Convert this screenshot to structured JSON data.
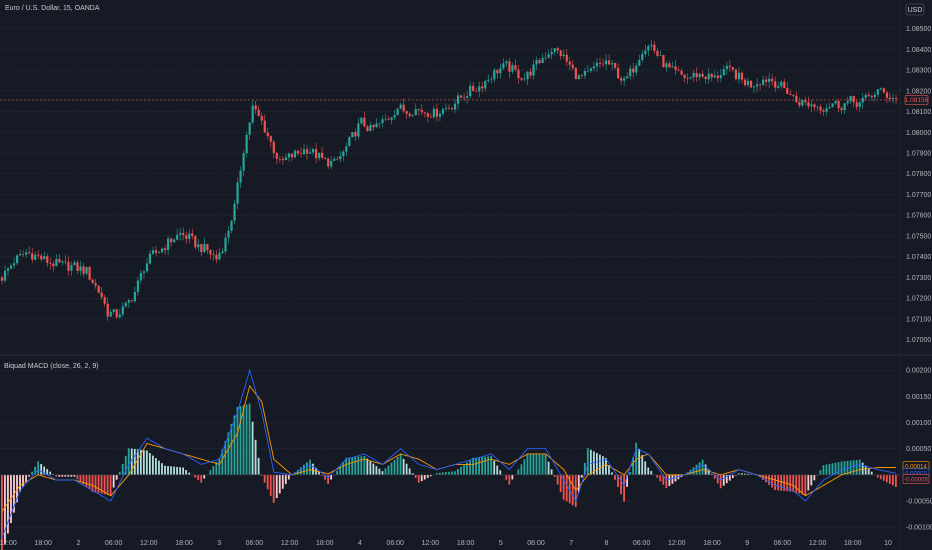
{
  "header": {
    "symbol_title": "Euro / U.S. Dollar, 15, OANDA",
    "currency": "USD"
  },
  "indicator": {
    "title": "Biquad MACD (close, 26, 2, 9)"
  },
  "colors": {
    "background": "#161a25",
    "grid": "#222631",
    "up_candle": "#26a69a",
    "down_candle": "#ef5350",
    "macd_line": "#2962ff",
    "signal_line": "#ff9800",
    "hist_up": "#b2dfdb",
    "hist_up_strong": "#26a69a",
    "hist_down": "#ffcdd2",
    "hist_down_strong": "#ef5350",
    "axis_text": "#b2b5be"
  },
  "chart_data": [
    {
      "type": "candlestick",
      "title": "Euro / U.S. Dollar, 15, OANDA",
      "y_ticks": [
        "1.08500",
        "1.08400",
        "1.08300",
        "1.08200",
        "1.08100",
        "1.08000",
        "1.07900",
        "1.07800",
        "1.07700",
        "1.07600",
        "1.07500",
        "1.07400",
        "1.07300",
        "1.07200",
        "1.07100",
        "1.07000"
      ],
      "y_tick_values": [
        1.085,
        1.084,
        1.083,
        1.082,
        1.081,
        1.08,
        1.079,
        1.078,
        1.077,
        1.076,
        1.075,
        1.074,
        1.073,
        1.072,
        1.071,
        1.07
      ],
      "ylim": [
        1.0695,
        1.0858
      ],
      "last_price_label": "1.08156",
      "last_price": 1.08156,
      "x_ticks": [
        "12:00",
        "18:00",
        "2",
        "06:00",
        "12:00",
        "18:00",
        "3",
        "06:00",
        "12:00",
        "18:00",
        "4",
        "06:00",
        "12:00",
        "18:00",
        "5",
        "06:00",
        "7",
        "8",
        "06:00",
        "12:00",
        "18:00",
        "9",
        "06:00",
        "12:00",
        "18:00",
        "10"
      ],
      "close_path": [
        [
          0,
          1.073
        ],
        [
          4,
          1.0738
        ],
        [
          8,
          1.0742
        ],
        [
          12,
          1.074
        ],
        [
          16,
          1.0737
        ],
        [
          20,
          1.0736
        ],
        [
          24,
          1.0735
        ],
        [
          28,
          1.0733
        ],
        [
          30,
          1.0728
        ],
        [
          33,
          1.0721
        ],
        [
          35,
          1.0713
        ],
        [
          38,
          1.0712
        ],
        [
          41,
          1.0716
        ],
        [
          44,
          1.0723
        ],
        [
          47,
          1.0735
        ],
        [
          50,
          1.0741
        ],
        [
          53,
          1.0744
        ],
        [
          56,
          1.0748
        ],
        [
          59,
          1.0751
        ],
        [
          62,
          1.0749
        ],
        [
          65,
          1.0745
        ],
        [
          68,
          1.0743
        ],
        [
          71,
          1.0739
        ],
        [
          74,
          1.0748
        ],
        [
          77,
          1.0764
        ],
        [
          80,
          1.0792
        ],
        [
          83,
          1.0812
        ],
        [
          86,
          1.0805
        ],
        [
          89,
          1.0795
        ],
        [
          92,
          1.0785
        ],
        [
          95,
          1.0788
        ],
        [
          98,
          1.079
        ],
        [
          101,
          1.0792
        ],
        [
          104,
          1.0789
        ],
        [
          107,
          1.0786
        ],
        [
          110,
          1.0785
        ],
        [
          113,
          1.079
        ],
        [
          116,
          1.0798
        ],
        [
          119,
          1.0805
        ],
        [
          122,
          1.0801
        ],
        [
          125,
          1.0804
        ],
        [
          128,
          1.0807
        ],
        [
          131,
          1.0812
        ],
        [
          134,
          1.081
        ],
        [
          137,
          1.0811
        ],
        [
          140,
          1.081
        ],
        [
          143,
          1.0809
        ],
        [
          146,
          1.0811
        ],
        [
          149,
          1.0813
        ],
        [
          152,
          1.0817
        ],
        [
          155,
          1.082
        ],
        [
          158,
          1.0822
        ],
        [
          161,
          1.0826
        ],
        [
          164,
          1.083
        ],
        [
          167,
          1.0832
        ],
        [
          170,
          1.0829
        ],
        [
          173,
          1.0826
        ],
        [
          176,
          1.0831
        ],
        [
          179,
          1.0836
        ],
        [
          182,
          1.084
        ],
        [
          185,
          1.0838
        ],
        [
          188,
          1.0832
        ],
        [
          191,
          1.0826
        ],
        [
          194,
          1.0828
        ],
        [
          197,
          1.0832
        ],
        [
          200,
          1.0834
        ],
        [
          203,
          1.083
        ],
        [
          206,
          1.0824
        ],
        [
          209,
          1.0831
        ],
        [
          212,
          1.084
        ],
        [
          215,
          1.0842
        ],
        [
          218,
          1.0835
        ],
        [
          221,
          1.083
        ],
        [
          224,
          1.0828
        ],
        [
          227,
          1.0826
        ],
        [
          230,
          1.0828
        ],
        [
          233,
          1.0827
        ],
        [
          236,
          1.0826
        ],
        [
          239,
          1.083
        ],
        [
          242,
          1.0829
        ],
        [
          245,
          1.0825
        ],
        [
          248,
          1.0823
        ],
        [
          251,
          1.0825
        ],
        [
          254,
          1.0826
        ],
        [
          257,
          1.0823
        ],
        [
          260,
          1.082
        ],
        [
          263,
          1.0815
        ],
        [
          266,
          1.0814
        ],
        [
          269,
          1.0813
        ],
        [
          272,
          1.0812
        ],
        [
          275,
          1.0814
        ],
        [
          278,
          1.0813
        ],
        [
          281,
          1.0815
        ],
        [
          284,
          1.0814
        ],
        [
          287,
          1.0817
        ],
        [
          290,
          1.082
        ],
        [
          293,
          1.0818
        ],
        [
          296,
          1.0816
        ]
      ]
    },
    {
      "type": "line",
      "title": "Biquad MACD (close, 26, 2, 9)",
      "y_ticks": [
        "0.00200",
        "0.00150",
        "0.00100",
        "0.00050",
        "-0.00050",
        "-0.00100"
      ],
      "y_tick_values": [
        0.002,
        0.0015,
        0.001,
        0.0005,
        -0.0005,
        -0.001
      ],
      "ylim": [
        -0.00115,
        0.0021
      ],
      "value_labels": [
        "0.00014",
        "0.00003",
        "-0.00005"
      ],
      "value_label_values": [
        0.00014,
        3e-05,
        -5e-05
      ],
      "series": [
        {
          "name": "MACD",
          "points": [
            [
              0,
              -0.0012
            ],
            [
              6,
              -0.0003
            ],
            [
              12,
              0.0001
            ],
            [
              18,
              -0.0001
            ],
            [
              24,
              -0.0001
            ],
            [
              30,
              -0.0003
            ],
            [
              36,
              -0.0005
            ],
            [
              42,
              0.0002
            ],
            [
              48,
              0.0007
            ],
            [
              54,
              0.0005
            ],
            [
              60,
              0.0004
            ],
            [
              66,
              0.0002
            ],
            [
              72,
              0.0003
            ],
            [
              78,
              0.0012
            ],
            [
              82,
              0.002
            ],
            [
              86,
              0.0012
            ],
            [
              90,
              5e-05
            ],
            [
              96,
              0.0
            ],
            [
              102,
              0.0002
            ],
            [
              108,
              -5e-05
            ],
            [
              114,
              0.0003
            ],
            [
              120,
              0.0004
            ],
            [
              126,
              0.0002
            ],
            [
              132,
              0.0005
            ],
            [
              138,
              0.0002
            ],
            [
              144,
              0.0001
            ],
            [
              150,
              0.0002
            ],
            [
              156,
              0.0003
            ],
            [
              162,
              0.0004
            ],
            [
              168,
              0.0001
            ],
            [
              174,
              0.0005
            ],
            [
              180,
              0.0005
            ],
            [
              186,
              -0.0001
            ],
            [
              190,
              -0.0005
            ],
            [
              194,
              0.0002
            ],
            [
              200,
              0.0003
            ],
            [
              206,
              -0.0002
            ],
            [
              210,
              0.0005
            ],
            [
              214,
              0.0004
            ],
            [
              220,
              -0.0001
            ],
            [
              226,
              0.0
            ],
            [
              232,
              0.0002
            ],
            [
              238,
              -0.0001
            ],
            [
              244,
              0.0001
            ],
            [
              250,
              0.0
            ],
            [
              256,
              -0.0002
            ],
            [
              262,
              -0.0003
            ],
            [
              266,
              -0.0005
            ],
            [
              272,
              -0.0001
            ],
            [
              278,
              0.0001
            ],
            [
              284,
              0.0002
            ],
            [
              290,
              0.0001
            ],
            [
              296,
              3e-05
            ]
          ]
        },
        {
          "name": "Signal",
          "points": [
            [
              0,
              -0.0007
            ],
            [
              6,
              -0.0002
            ],
            [
              12,
              0.0
            ],
            [
              18,
              -0.0001
            ],
            [
              24,
              -0.0001
            ],
            [
              30,
              -0.0002
            ],
            [
              36,
              -0.0004
            ],
            [
              42,
              0.0
            ],
            [
              48,
              0.0006
            ],
            [
              54,
              0.0005
            ],
            [
              60,
              0.0004
            ],
            [
              66,
              0.0003
            ],
            [
              72,
              0.0002
            ],
            [
              78,
              0.0008
            ],
            [
              82,
              0.0017
            ],
            [
              86,
              0.0014
            ],
            [
              90,
              0.0003
            ],
            [
              96,
              0.0
            ],
            [
              102,
              0.0001
            ],
            [
              108,
              2e-05
            ],
            [
              114,
              0.0002
            ],
            [
              120,
              0.0003
            ],
            [
              126,
              0.0002
            ],
            [
              132,
              0.0004
            ],
            [
              138,
              0.0003
            ],
            [
              144,
              0.0001
            ],
            [
              150,
              0.0002
            ],
            [
              156,
              0.0002
            ],
            [
              162,
              0.0003
            ],
            [
              168,
              0.0002
            ],
            [
              174,
              0.0004
            ],
            [
              180,
              0.0004
            ],
            [
              186,
              0.0001
            ],
            [
              190,
              -0.0003
            ],
            [
              194,
              0.0
            ],
            [
              200,
              0.0002
            ],
            [
              206,
              0.0
            ],
            [
              210,
              0.0003
            ],
            [
              214,
              0.0004
            ],
            [
              220,
              0.0
            ],
            [
              226,
              0.0
            ],
            [
              232,
              0.0001
            ],
            [
              238,
              0.0
            ],
            [
              244,
              0.0001
            ],
            [
              250,
              0.0
            ],
            [
              256,
              -0.0001
            ],
            [
              262,
              -0.0002
            ],
            [
              266,
              -0.0004
            ],
            [
              272,
              -0.0002
            ],
            [
              278,
              0.0
            ],
            [
              284,
              0.0001
            ],
            [
              290,
              0.00014
            ],
            [
              296,
              0.00014
            ]
          ]
        }
      ]
    }
  ]
}
